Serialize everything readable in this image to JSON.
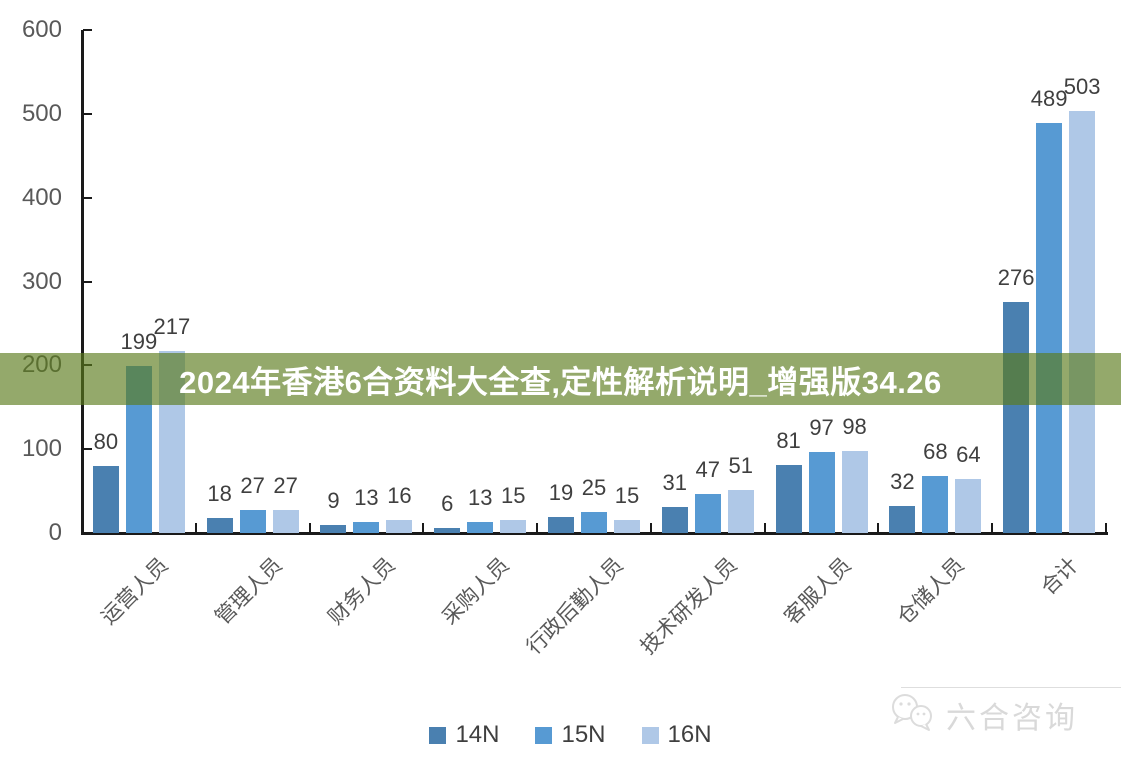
{
  "banner": {
    "text": "2024年香港6合资料大全查,定性解析说明_增强版34.26",
    "background_color": "#5B7B1C",
    "text_color": "#FFFFFF"
  },
  "chart_data": {
    "type": "bar",
    "title": "",
    "xlabel": "",
    "ylabel": "",
    "categories": [
      "运营人员",
      "管理人员",
      "财务人员",
      "采购人员",
      "行政后勤人员",
      "技术研发人员",
      "客服人员",
      "仓储人员",
      "合计"
    ],
    "series": [
      {
        "name": "14N",
        "color": "#4A80B0",
        "values": [
          80,
          18,
          9,
          6,
          19,
          31,
          81,
          32,
          276
        ]
      },
      {
        "name": "15N",
        "color": "#579AD3",
        "values": [
          199,
          27,
          13,
          13,
          25,
          47,
          97,
          68,
          489
        ]
      },
      {
        "name": "16N",
        "color": "#AFC8E7",
        "values": [
          217,
          27,
          16,
          15,
          15,
          51,
          98,
          64,
          503
        ]
      }
    ],
    "ylim": [
      0,
      600
    ],
    "y_ticks": [
      600,
      500,
      400,
      300,
      200,
      100,
      0
    ],
    "grid": false,
    "value_labels": true,
    "legend_position": "bottom",
    "axis_color": "#1A1A1A",
    "tick_label_color": "#595959",
    "value_label_color": "#3F3F3F"
  },
  "watermark": {
    "brand": "六合咨询",
    "icon": "chat-bubbles-icon",
    "color": "#D9D9D9"
  }
}
